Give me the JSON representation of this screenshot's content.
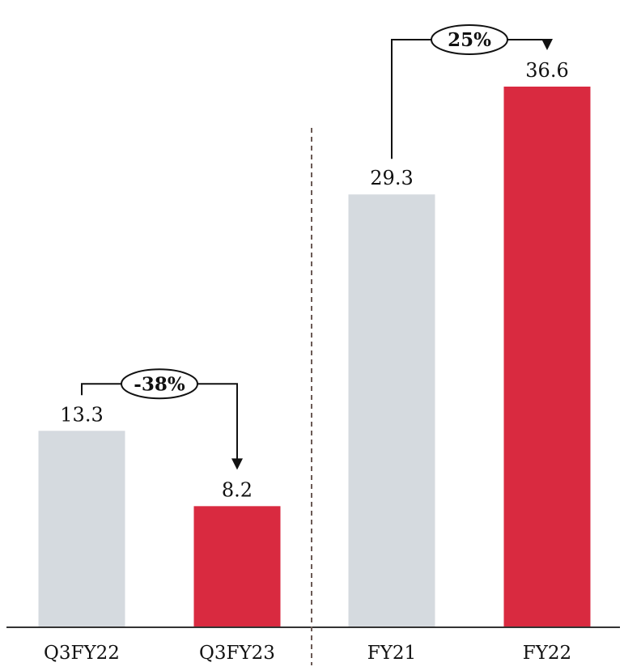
{
  "chart_data": {
    "type": "bar",
    "categories": [
      "Q3FY22",
      "Q3FY23",
      "FY21",
      "FY22"
    ],
    "values": [
      13.3,
      8.2,
      29.3,
      36.6
    ],
    "value_labels": [
      "13.3",
      "8.2",
      "29.3",
      "36.6"
    ],
    "bar_colors": [
      "#d5dadf",
      "#d92a40",
      "#d5dadf",
      "#d92a40"
    ],
    "ylim": [
      0,
      36.6
    ],
    "grid": false,
    "title": "",
    "xlabel": "",
    "ylabel": "",
    "annotations": [
      {
        "from": "Q3FY22",
        "to": "Q3FY23",
        "label": "-38%"
      },
      {
        "from": "FY21",
        "to": "FY22",
        "label": "25%"
      }
    ],
    "separator": "dashed vertical line between Q3FY23 and FY21"
  }
}
